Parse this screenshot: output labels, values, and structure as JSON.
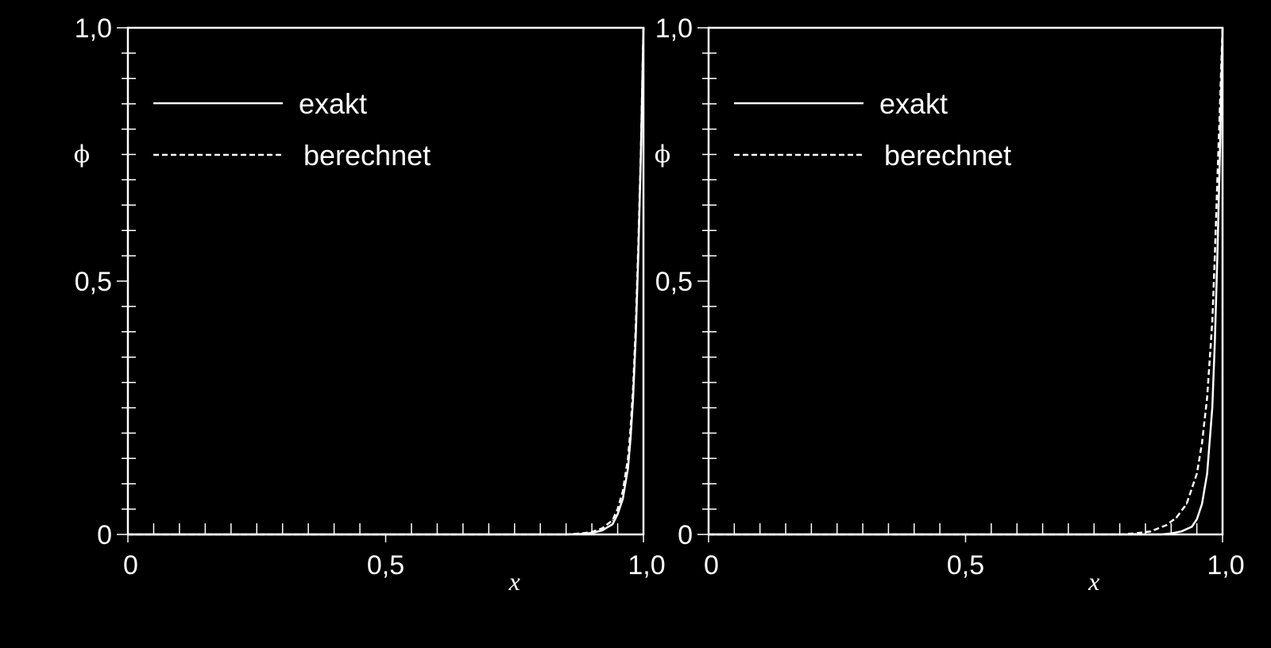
{
  "colors": {
    "background": "#000000",
    "foreground": "#ffffff"
  },
  "chart_data": [
    {
      "type": "line",
      "xlabel": "x",
      "ylabel": "ϕ",
      "xlim": [
        0,
        1
      ],
      "ylim": [
        0,
        1
      ],
      "x_ticks": [
        "0",
        "0,5",
        "1,0"
      ],
      "y_ticks": [
        "0",
        "0,5",
        "1,0"
      ],
      "grid": false,
      "legend": "top-left",
      "series": [
        {
          "name": "exakt",
          "style": "solid",
          "x": [
            0.85,
            0.88,
            0.9,
            0.92,
            0.94,
            0.95,
            0.96,
            0.97,
            0.975,
            0.98,
            0.985,
            0.99,
            0.995,
            1.0
          ],
          "y": [
            0,
            0.001,
            0.003,
            0.008,
            0.02,
            0.04,
            0.07,
            0.13,
            0.19,
            0.27,
            0.39,
            0.55,
            0.75,
            1.0
          ]
        },
        {
          "name": "berechnet",
          "style": "dashed",
          "x": [
            0.85,
            0.88,
            0.9,
            0.92,
            0.94,
            0.95,
            0.96,
            0.97,
            0.975,
            0.98,
            0.985,
            0.99,
            0.995,
            1.0
          ],
          "y": [
            0,
            0.002,
            0.005,
            0.012,
            0.028,
            0.05,
            0.085,
            0.15,
            0.21,
            0.29,
            0.41,
            0.57,
            0.76,
            1.0
          ]
        }
      ]
    },
    {
      "type": "line",
      "xlabel": "x",
      "ylabel": "ϕ",
      "xlim": [
        0,
        1
      ],
      "ylim": [
        0,
        1
      ],
      "x_ticks": [
        "0",
        "0,5",
        "1,0"
      ],
      "y_ticks": [
        "0",
        "0,5",
        "1,0"
      ],
      "grid": false,
      "legend": "top-left",
      "series": [
        {
          "name": "exakt",
          "style": "solid",
          "x": [
            0.88,
            0.9,
            0.92,
            0.94,
            0.95,
            0.96,
            0.97,
            0.98,
            0.985,
            0.99,
            0.995,
            1.0
          ],
          "y": [
            0,
            0.002,
            0.006,
            0.015,
            0.03,
            0.06,
            0.12,
            0.25,
            0.38,
            0.55,
            0.76,
            1.0
          ]
        },
        {
          "name": "berechnet",
          "style": "dashed",
          "x": [
            0.8,
            0.83,
            0.86,
            0.89,
            0.91,
            0.93,
            0.95,
            0.96,
            0.97,
            0.98,
            0.985,
            0.99,
            0.995,
            1.0
          ],
          "y": [
            0,
            0.002,
            0.006,
            0.018,
            0.033,
            0.06,
            0.12,
            0.18,
            0.27,
            0.42,
            0.55,
            0.7,
            0.85,
            1.0
          ]
        }
      ]
    }
  ]
}
